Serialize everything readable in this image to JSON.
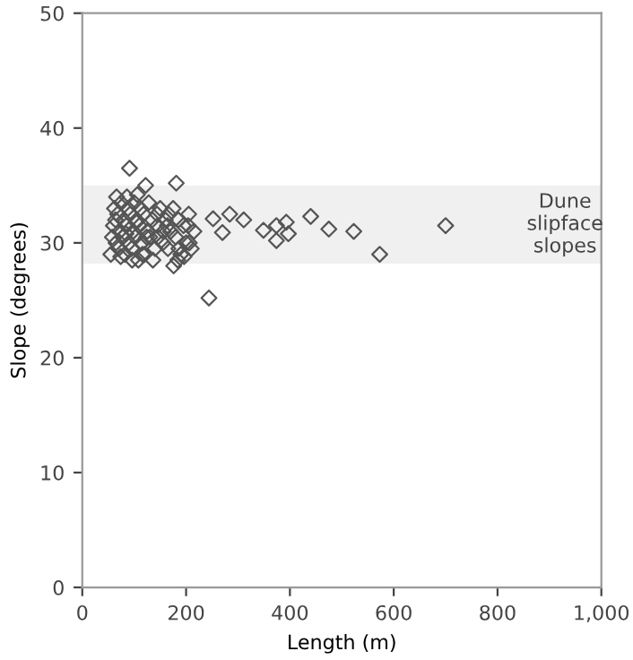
{
  "chart_data": {
    "type": "scatter",
    "xlabel": "Length (m)",
    "ylabel": "Slope (degrees)",
    "xlim": [
      0,
      1000
    ],
    "ylim": [
      0,
      50
    ],
    "xticks": [
      0,
      200,
      400,
      600,
      800,
      {
        "value": 1000,
        "label": "1,000"
      }
    ],
    "yticks": [
      0,
      10,
      20,
      30,
      40,
      50
    ],
    "marker": "diamond",
    "grid": false,
    "legend": false,
    "bands": [
      {
        "axis": "y",
        "from": 28.2,
        "to": 35,
        "label": "Dune\nslipface\nslopes",
        "color": "#f0f0f0"
      }
    ],
    "series": [
      {
        "color": "#555555",
        "x": [
          91,
          122,
          181,
          244,
          252,
          284,
          311,
          270,
          349,
          374,
          374,
          393,
          397,
          440,
          475,
          523,
          573,
          700,
          55,
          60,
          62,
          65,
          68,
          70,
          72,
          75,
          78,
          80,
          82,
          85,
          88,
          90,
          92,
          95,
          98,
          100,
          102,
          105,
          108,
          110,
          112,
          115,
          118,
          120,
          125,
          128,
          130,
          135,
          140,
          145,
          150,
          155,
          160,
          165,
          170,
          175,
          180,
          185,
          190,
          195,
          200,
          205,
          210,
          215,
          58,
          66,
          74,
          86,
          96,
          106,
          116,
          136,
          146,
          156,
          166,
          176,
          186,
          196,
          206,
          64,
          84,
          104,
          124,
          144,
          164,
          184,
          204
        ],
        "values": [
          36.5,
          35.0,
          35.2,
          25.2,
          32.1,
          32.5,
          32.0,
          30.9,
          31.1,
          31.5,
          30.2,
          31.8,
          30.8,
          32.3,
          31.2,
          31.0,
          29.0,
          31.5,
          29.0,
          31.5,
          33.0,
          30.0,
          32.5,
          29.5,
          31.0,
          33.5,
          30.5,
          32.0,
          29.0,
          31.5,
          33.0,
          30.0,
          32.5,
          29.5,
          31.0,
          33.5,
          30.5,
          32.0,
          28.5,
          31.5,
          33.0,
          30.0,
          32.5,
          29.0,
          31.0,
          33.5,
          30.5,
          32.0,
          29.5,
          31.5,
          33.0,
          30.0,
          32.0,
          29.5,
          31.0,
          33.0,
          30.5,
          32.0,
          29.0,
          31.5,
          30.0,
          32.5,
          29.5,
          31.0,
          30.5,
          34.0,
          28.8,
          34.0,
          28.5,
          34.2,
          29.0,
          28.5,
          30.5,
          31.0,
          32.5,
          28.0,
          29.5,
          28.8,
          30.0,
          32.0,
          30.8,
          31.8,
          30.5,
          32.5,
          31.5,
          28.5,
          31.5
        ]
      }
    ]
  }
}
